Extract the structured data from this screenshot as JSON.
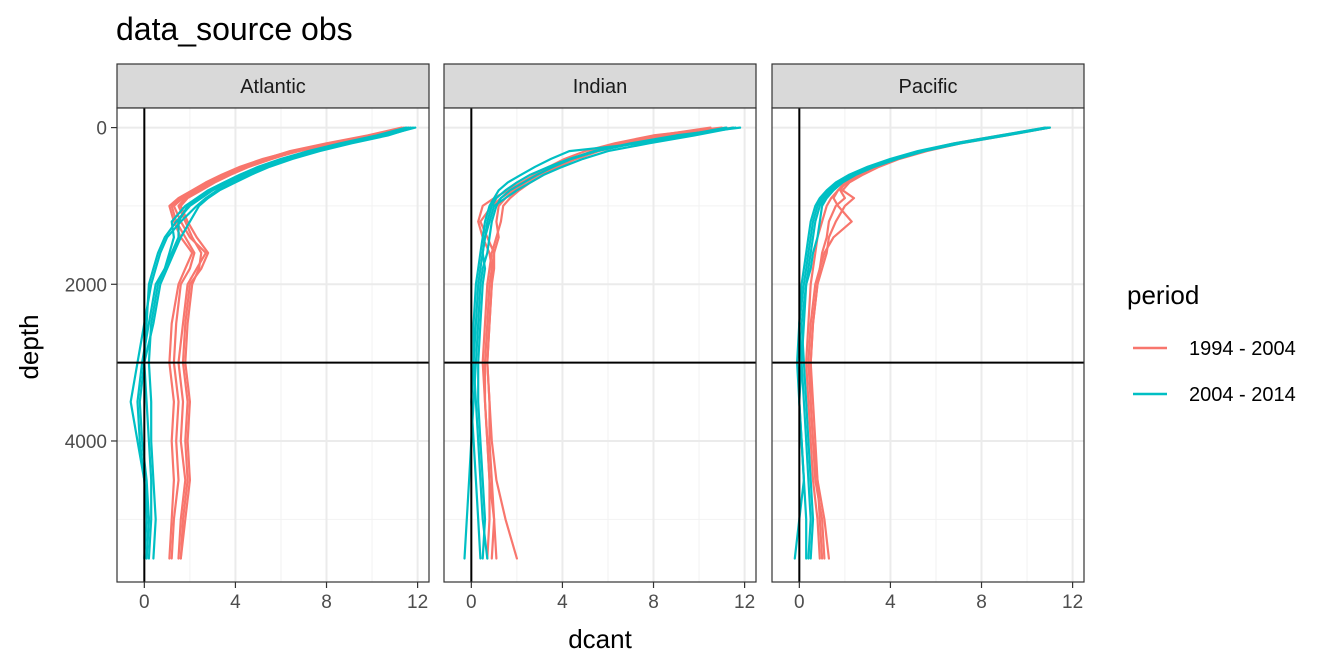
{
  "chart_data": {
    "type": "line",
    "title": "data_source obs",
    "xlabel": "dcant",
    "ylabel": "depth",
    "xlim": [
      -1.2,
      12.5
    ],
    "ylim": [
      5800,
      -250
    ],
    "y_reversed": true,
    "x_ticks": [
      0,
      4,
      8,
      12
    ],
    "y_ticks": [
      0,
      2000,
      4000
    ],
    "grid": true,
    "reference_lines": {
      "vline_x": 0,
      "hline_y": 3000
    },
    "legend": {
      "title": "period",
      "placement": "right",
      "entries": [
        {
          "label": "1994 - 2004",
          "color": "#F8766D"
        },
        {
          "label": "2004 - 2014",
          "color": "#00BFC4"
        }
      ]
    },
    "depths": [
      0,
      100,
      200,
      300,
      400,
      500,
      600,
      700,
      800,
      900,
      1000,
      1200,
      1400,
      1600,
      1800,
      2000,
      2500,
      3000,
      3500,
      4000,
      4500,
      5000,
      5500
    ],
    "panels": [
      {
        "name": "Atlantic",
        "series": [
          {
            "period": "1994 - 2004",
            "values": [
              11.5,
              10.0,
              8.2,
              6.6,
              5.4,
              4.4,
              3.6,
              2.9,
              2.3,
              1.8,
              1.5,
              1.8,
              2.1,
              2.5,
              2.4,
              2.1,
              1.9,
              1.8,
              2.0,
              1.9,
              2.0,
              1.8,
              1.6
            ]
          },
          {
            "period": "1994 - 2004",
            "values": [
              11.7,
              10.3,
              8.5,
              6.8,
              5.5,
              4.5,
              3.7,
              3.0,
              2.4,
              1.7,
              1.3,
              1.6,
              2.0,
              2.7,
              2.3,
              1.9,
              1.7,
              1.5,
              1.7,
              1.6,
              1.8,
              1.6,
              1.5
            ]
          },
          {
            "period": "1994 - 2004",
            "values": [
              11.3,
              9.8,
              8.0,
              6.4,
              5.3,
              4.3,
              3.5,
              2.8,
              2.2,
              1.6,
              1.2,
              1.4,
              1.8,
              2.2,
              2.0,
              1.6,
              1.4,
              1.3,
              1.5,
              1.4,
              1.5,
              1.3,
              1.2
            ]
          },
          {
            "period": "1994 - 2004",
            "values": [
              11.6,
              10.1,
              8.3,
              6.7,
              5.6,
              4.6,
              3.8,
              3.1,
              2.5,
              1.9,
              1.6,
              1.9,
              2.3,
              2.8,
              2.5,
              2.0,
              1.8,
              1.7,
              1.9,
              1.8,
              1.9,
              1.7,
              1.6
            ]
          },
          {
            "period": "1994 - 2004",
            "values": [
              11.4,
              9.9,
              8.1,
              6.5,
              5.2,
              4.2,
              3.4,
              2.7,
              2.1,
              1.5,
              1.1,
              1.3,
              1.6,
              2.1,
              1.8,
              1.5,
              1.2,
              1.1,
              1.3,
              1.2,
              1.3,
              1.2,
              1.1
            ]
          },
          {
            "period": "2004 - 2014",
            "values": [
              11.9,
              10.6,
              9.0,
              7.6,
              6.4,
              5.4,
              4.6,
              3.9,
              3.2,
              2.7,
              2.3,
              1.6,
              1.0,
              0.7,
              0.5,
              0.3,
              0.0,
              -0.3,
              -0.6,
              -0.3,
              0.0,
              0.2,
              0.1
            ]
          },
          {
            "period": "2004 - 2014",
            "values": [
              11.7,
              10.4,
              8.8,
              7.4,
              6.2,
              5.2,
              4.4,
              3.7,
              3.0,
              2.5,
              2.0,
              1.4,
              0.9,
              0.6,
              0.4,
              0.2,
              0.1,
              0.0,
              0.1,
              0.2,
              0.3,
              0.3,
              0.2
            ]
          },
          {
            "period": "2004 - 2014",
            "values": [
              11.5,
              10.2,
              8.6,
              7.2,
              6.0,
              5.0,
              4.2,
              3.5,
              2.8,
              2.3,
              1.8,
              1.2,
              1.3,
              1.1,
              0.9,
              0.6,
              0.3,
              0.2,
              0.3,
              0.3,
              0.4,
              0.5,
              0.4
            ]
          },
          {
            "period": "2004 - 2014",
            "values": [
              11.8,
              10.7,
              9.1,
              7.7,
              6.5,
              5.5,
              4.7,
              4.0,
              3.3,
              2.8,
              2.4,
              2.0,
              1.6,
              1.3,
              1.0,
              0.7,
              0.4,
              0.0,
              -0.2,
              -0.1,
              0.1,
              0.2,
              0.1
            ]
          },
          {
            "period": "2004 - 2014",
            "values": [
              11.6,
              10.3,
              8.7,
              7.3,
              6.1,
              5.1,
              4.3,
              3.6,
              2.9,
              2.4,
              1.9,
              1.5,
              1.5,
              1.2,
              0.9,
              0.5,
              0.2,
              -0.1,
              -0.3,
              -0.2,
              0.0,
              0.1,
              0.0
            ]
          }
        ]
      },
      {
        "name": "Indian",
        "series": [
          {
            "period": "1994 - 2004",
            "values": [
              11.0,
              8.0,
              6.3,
              5.0,
              4.1,
              3.4,
              2.8,
              2.2,
              1.6,
              1.0,
              0.5,
              0.3,
              0.5,
              0.8,
              0.9,
              0.9,
              0.8,
              0.7,
              0.8,
              0.9,
              1.1,
              1.5,
              2.0
            ]
          },
          {
            "period": "1994 - 2004",
            "values": [
              11.5,
              9.0,
              7.0,
              5.6,
              4.6,
              3.8,
              3.2,
              2.6,
              2.1,
              1.7,
              1.4,
              1.3,
              1.1,
              0.9,
              0.8,
              0.7,
              0.6,
              0.5,
              0.6,
              0.7,
              0.8,
              1.0,
              1.1
            ]
          },
          {
            "period": "1994 - 2004",
            "values": [
              10.5,
              8.2,
              6.6,
              5.3,
              4.4,
              3.6,
              2.9,
              2.3,
              1.8,
              1.3,
              0.9,
              0.4,
              0.7,
              1.0,
              1.0,
              0.9,
              0.8,
              0.7,
              0.8,
              0.8,
              0.9,
              1.0,
              0.9
            ]
          },
          {
            "period": "1994 - 2004",
            "values": [
              11.2,
              8.6,
              6.8,
              5.5,
              4.5,
              3.7,
              3.0,
              2.4,
              1.9,
              1.5,
              1.2,
              1.1,
              1.2,
              1.0,
              0.9,
              0.8,
              0.7,
              0.6,
              0.6,
              0.7,
              0.8,
              0.8,
              0.7
            ]
          },
          {
            "period": "2004 - 2014",
            "values": [
              11.8,
              9.0,
              7.0,
              5.4,
              4.3,
              3.4,
              2.6,
              2.0,
              1.5,
              1.1,
              0.9,
              0.7,
              0.6,
              0.5,
              0.4,
              0.3,
              0.2,
              0.1,
              0.0,
              0.1,
              0.2,
              0.3,
              0.4
            ]
          },
          {
            "period": "2004 - 2014",
            "values": [
              11.5,
              9.6,
              7.5,
              4.3,
              3.5,
              2.8,
              2.2,
              1.6,
              1.2,
              1.0,
              0.8,
              0.6,
              0.5,
              0.4,
              0.3,
              0.2,
              0.1,
              0.1,
              0.2,
              0.3,
              0.4,
              0.5,
              0.7
            ]
          },
          {
            "period": "2004 - 2014",
            "values": [
              11.2,
              9.3,
              7.2,
              5.5,
              4.4,
              3.6,
              2.9,
              2.3,
              1.7,
              1.3,
              1.1,
              0.9,
              0.8,
              0.7,
              0.5,
              0.4,
              0.3,
              0.2,
              0.1,
              0.0,
              -0.1,
              -0.2,
              -0.3
            ]
          },
          {
            "period": "2004 - 2014",
            "values": [
              11.6,
              9.8,
              7.8,
              6.0,
              4.9,
              4.0,
              3.2,
              2.6,
              2.0,
              1.5,
              1.0,
              0.8,
              0.6,
              0.5,
              0.6,
              0.5,
              0.4,
              0.3,
              0.3,
              0.4,
              0.5,
              0.6,
              0.5
            ]
          }
        ]
      },
      {
        "name": "Pacific",
        "series": [
          {
            "period": "1994 - 2004",
            "values": [
              11.0,
              9.0,
              7.0,
              5.5,
              4.3,
              3.4,
              2.6,
              2.0,
              1.7,
              1.5,
              1.7,
              2.3,
              1.5,
              1.1,
              0.9,
              0.8,
              0.6,
              0.5,
              0.6,
              0.7,
              0.8,
              1.1,
              1.3
            ]
          },
          {
            "period": "1994 - 2004",
            "values": [
              10.9,
              8.8,
              6.8,
              5.3,
              4.1,
              3.2,
              2.5,
              2.0,
              1.8,
              2.0,
              1.6,
              1.3,
              1.2,
              1.0,
              0.9,
              0.7,
              0.5,
              0.4,
              0.5,
              0.6,
              0.7,
              1.0,
              1.1
            ]
          },
          {
            "period": "1994 - 2004",
            "values": [
              11.0,
              9.1,
              7.1,
              5.6,
              4.4,
              3.5,
              2.8,
              2.2,
              1.9,
              2.4,
              2.0,
              1.6,
              1.3,
              1.2,
              1.0,
              0.8,
              0.6,
              0.5,
              0.5,
              0.6,
              0.8,
              0.9,
              1.0
            ]
          },
          {
            "period": "1994 - 2004",
            "values": [
              10.8,
              8.9,
              6.9,
              5.4,
              4.2,
              3.3,
              2.7,
              2.1,
              1.7,
              1.4,
              1.2,
              1.0,
              0.8,
              0.7,
              0.6,
              0.5,
              0.4,
              0.3,
              0.4,
              0.5,
              0.6,
              0.8,
              0.9
            ]
          },
          {
            "period": "2004 - 2014",
            "values": [
              11.0,
              9.0,
              7.0,
              5.4,
              4.2,
              3.2,
              2.4,
              1.8,
              1.4,
              1.1,
              0.9,
              0.7,
              0.6,
              0.5,
              0.4,
              0.3,
              0.1,
              0.2,
              0.3,
              0.4,
              0.5,
              0.6,
              0.5
            ]
          },
          {
            "period": "2004 - 2014",
            "values": [
              10.9,
              8.9,
              6.9,
              5.3,
              4.1,
              3.1,
              2.3,
              1.7,
              1.3,
              1.0,
              0.8,
              0.6,
              0.5,
              0.4,
              0.3,
              0.2,
              0.0,
              0.1,
              0.2,
              0.3,
              0.4,
              0.5,
              0.4
            ]
          },
          {
            "period": "2004 - 2014",
            "values": [
              11.0,
              9.1,
              7.1,
              5.5,
              4.3,
              3.3,
              2.5,
              1.9,
              1.5,
              1.2,
              1.0,
              0.9,
              0.8,
              0.6,
              0.5,
              0.3,
              0.2,
              0.1,
              0.0,
              0.1,
              0.2,
              0.3,
              0.3
            ]
          },
          {
            "period": "2004 - 2014",
            "values": [
              10.8,
              8.8,
              6.8,
              5.2,
              4.0,
              3.0,
              2.2,
              1.6,
              1.2,
              0.9,
              0.7,
              0.5,
              0.4,
              0.3,
              0.2,
              0.1,
              0.0,
              -0.1,
              0.0,
              0.1,
              0.2,
              0.0,
              -0.2
            ]
          }
        ]
      }
    ]
  }
}
